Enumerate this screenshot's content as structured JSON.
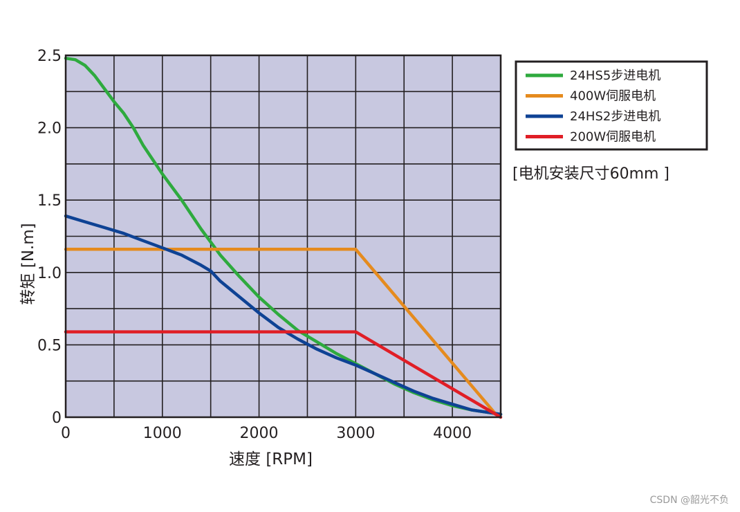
{
  "chart_data": {
    "type": "line",
    "xlabel": "速度 [RPM]",
    "ylabel": "转矩 [N.m]",
    "xlim": [
      0,
      4500
    ],
    "ylim": [
      0,
      2.5
    ],
    "x_ticks": [
      0,
      1000,
      2000,
      3000,
      4000
    ],
    "x_tick_labels": [
      "0",
      "1000",
      "2000",
      "3000",
      "4000"
    ],
    "y_ticks": [
      0,
      0.5,
      1.0,
      1.5,
      2.0,
      2.5
    ],
    "y_tick_labels": [
      "0",
      "0.5",
      "1.0",
      "1.5",
      "2.0",
      "2.5"
    ],
    "grid": true,
    "legend_position": "top-right, outside plot",
    "background_color": "#c8c8e0",
    "series": [
      {
        "name": "24HS5步进电机",
        "color": "#2eaa3e",
        "x": [
          0,
          100,
          200,
          300,
          400,
          500,
          600,
          700,
          800,
          900,
          1000,
          1200,
          1400,
          1600,
          1800,
          2000,
          2200,
          2400,
          2600,
          2800,
          3000,
          3200,
          3400,
          3600,
          3800,
          4000,
          4200,
          4400,
          4500
        ],
        "y": [
          2.48,
          2.47,
          2.43,
          2.36,
          2.27,
          2.18,
          2.1,
          2.0,
          1.88,
          1.78,
          1.68,
          1.5,
          1.3,
          1.12,
          0.97,
          0.83,
          0.71,
          0.6,
          0.52,
          0.44,
          0.37,
          0.3,
          0.23,
          0.17,
          0.12,
          0.08,
          0.05,
          0.03,
          0.02
        ]
      },
      {
        "name": "400W伺服电机",
        "color": "#e58b1e",
        "x": [
          0,
          3000,
          4450
        ],
        "y": [
          1.16,
          1.16,
          0.02
        ]
      },
      {
        "name": "24HS2步进电机",
        "color": "#0e4294",
        "x": [
          0,
          200,
          400,
          600,
          800,
          1000,
          1200,
          1400,
          1500,
          1600,
          1800,
          2000,
          2200,
          2400,
          2600,
          2800,
          3000,
          3200,
          3400,
          3600,
          3800,
          4000,
          4200,
          4400,
          4500
        ],
        "y": [
          1.39,
          1.35,
          1.31,
          1.27,
          1.22,
          1.17,
          1.12,
          1.05,
          1.01,
          0.94,
          0.83,
          0.72,
          0.62,
          0.54,
          0.47,
          0.41,
          0.36,
          0.3,
          0.24,
          0.18,
          0.13,
          0.09,
          0.05,
          0.03,
          0.02
        ]
      },
      {
        "name": "200W伺服电机",
        "color": "#e01e26",
        "x": [
          0,
          3000,
          4500
        ],
        "y": [
          0.59,
          0.59,
          0.0
        ]
      }
    ],
    "note": "[电机安装尺寸60mm ]"
  },
  "watermark": "CSDN @韶光不负"
}
